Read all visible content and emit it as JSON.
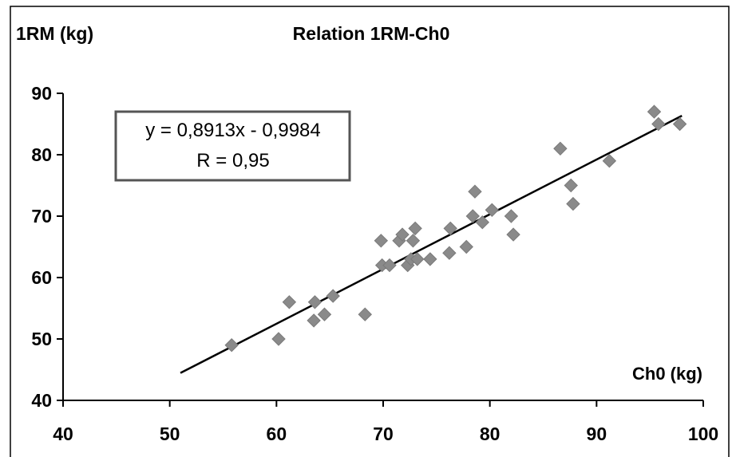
{
  "chart_data": {
    "type": "scatter",
    "title": "Relation 1RM-Ch0",
    "ylabel": "1RM (kg)",
    "xlabel": "Ch0 (kg)",
    "xlim": [
      40,
      100
    ],
    "ylim": [
      40,
      90
    ],
    "xticks": [
      40,
      50,
      60,
      70,
      80,
      90,
      100
    ],
    "yticks": [
      40,
      50,
      60,
      70,
      80,
      90
    ],
    "grid": false,
    "legend": "none",
    "marker": "diamond",
    "marker_color": "#8a8a8a",
    "line_color": "#000000",
    "points": [
      {
        "x": 55.8,
        "y": 49
      },
      {
        "x": 60.2,
        "y": 50
      },
      {
        "x": 61.2,
        "y": 56
      },
      {
        "x": 63.5,
        "y": 53
      },
      {
        "x": 63.6,
        "y": 56
      },
      {
        "x": 64.5,
        "y": 54
      },
      {
        "x": 65.3,
        "y": 57
      },
      {
        "x": 68.3,
        "y": 54
      },
      {
        "x": 69.8,
        "y": 66
      },
      {
        "x": 69.9,
        "y": 62
      },
      {
        "x": 70.6,
        "y": 62
      },
      {
        "x": 71.5,
        "y": 66
      },
      {
        "x": 71.8,
        "y": 67
      },
      {
        "x": 72.3,
        "y": 62
      },
      {
        "x": 72.6,
        "y": 63
      },
      {
        "x": 72.8,
        "y": 66
      },
      {
        "x": 73.0,
        "y": 68
      },
      {
        "x": 73.2,
        "y": 63
      },
      {
        "x": 74.4,
        "y": 63
      },
      {
        "x": 76.2,
        "y": 64
      },
      {
        "x": 76.3,
        "y": 68
      },
      {
        "x": 77.8,
        "y": 65
      },
      {
        "x": 78.4,
        "y": 70
      },
      {
        "x": 78.6,
        "y": 74
      },
      {
        "x": 79.3,
        "y": 69
      },
      {
        "x": 80.2,
        "y": 71
      },
      {
        "x": 82.0,
        "y": 70
      },
      {
        "x": 82.2,
        "y": 67
      },
      {
        "x": 86.6,
        "y": 81
      },
      {
        "x": 87.6,
        "y": 75
      },
      {
        "x": 87.8,
        "y": 72
      },
      {
        "x": 91.2,
        "y": 79
      },
      {
        "x": 95.4,
        "y": 87
      },
      {
        "x": 95.8,
        "y": 85
      },
      {
        "x": 97.8,
        "y": 85
      }
    ],
    "trendline": {
      "slope": 0.8913,
      "intercept": -0.9984,
      "x_start": 51,
      "x_end": 98
    },
    "annotation": {
      "equation": "y = 0,8913x - 0,9984",
      "r_value": "R = 0,95"
    }
  }
}
